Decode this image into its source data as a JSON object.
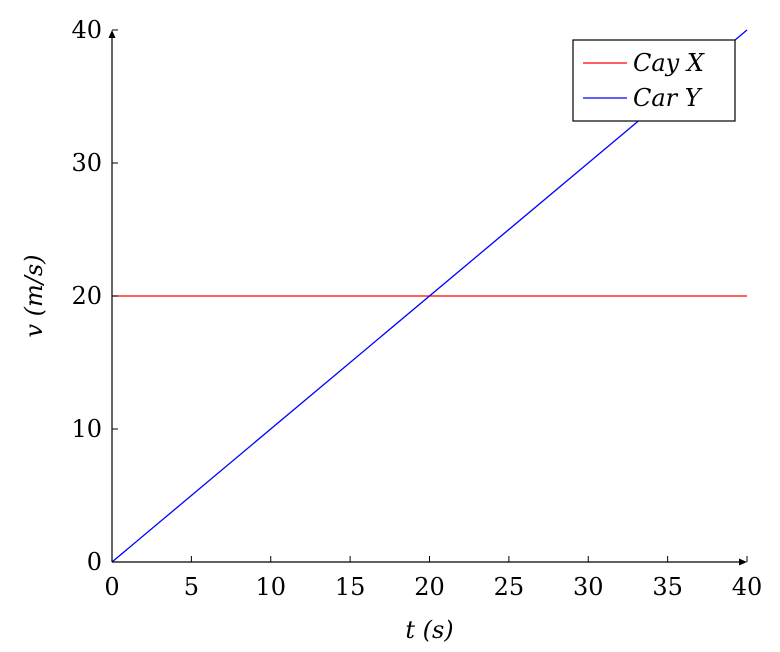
{
  "chart_data": {
    "type": "line",
    "title": "",
    "xlabel": "t (s)",
    "ylabel": "v (m/s)",
    "xlim": [
      0,
      40
    ],
    "ylim": [
      0,
      40
    ],
    "xticks": [
      0,
      5,
      10,
      15,
      20,
      25,
      30,
      35,
      40
    ],
    "yticks": [
      0,
      10,
      20,
      30,
      40
    ],
    "grid": false,
    "legend_position": "top-right",
    "series": [
      {
        "name": "Cay X",
        "color": "#ff0000",
        "x": [
          0,
          40
        ],
        "y": [
          20,
          20
        ]
      },
      {
        "name": "Car Y",
        "color": "#0000ff",
        "x": [
          0,
          40
        ],
        "y": [
          0,
          40
        ]
      }
    ]
  }
}
